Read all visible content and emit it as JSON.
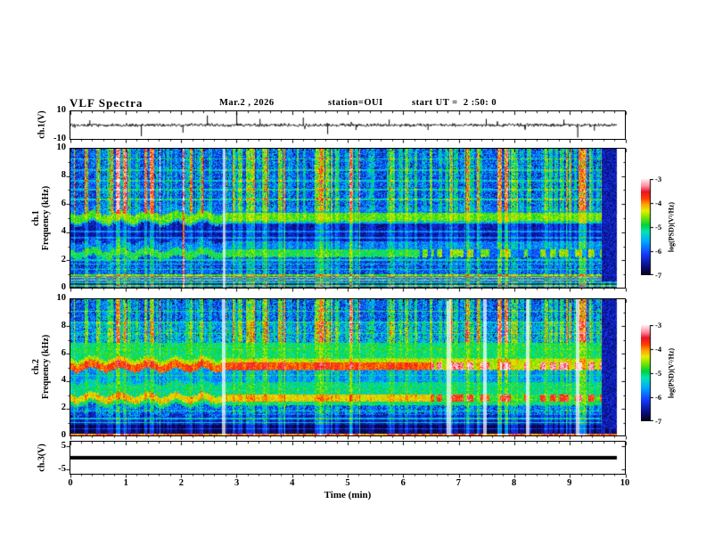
{
  "header": {
    "title": "VLF Spectra",
    "date": "Mar.2 , 2026",
    "station": "station=OUI",
    "start_ut": "start UT =  2 :50: 0"
  },
  "axes": {
    "time": {
      "label": "Time (min)",
      "ticks": [
        "0",
        "1",
        "2",
        "3",
        "4",
        "5",
        "6",
        "7",
        "8",
        "9",
        "10"
      ],
      "range_min": [
        0,
        10
      ],
      "minor_ticks_per_major": 5
    },
    "ch1_voltage": {
      "label": "ch.1(V)",
      "ticks": [
        "10",
        "-10"
      ],
      "range_V": [
        -10,
        10
      ]
    },
    "ch1_freq": {
      "line1": "ch.1",
      "line2": "Frequency (kHz)",
      "ticks": [
        "10",
        "8",
        "6",
        "4",
        "2",
        "0"
      ],
      "range_kHz": [
        0,
        10
      ]
    },
    "ch2_freq": {
      "line1": "ch.2",
      "line2": "Frequency (kHz)",
      "ticks": [
        "10",
        "8",
        "6",
        "4",
        "2",
        "0"
      ],
      "range_kHz": [
        0,
        10
      ]
    },
    "ch3_voltage": {
      "label": "ch.3(V)",
      "ticks": [
        "5",
        "-5"
      ],
      "tick_values_V": [
        5,
        -5
      ]
    }
  },
  "colorbar": {
    "label": "log(PSD)(V²/Hz)",
    "ticks": [
      "-3",
      "-4",
      "-5",
      "-6",
      "-7"
    ],
    "range": [
      -7,
      -3
    ]
  },
  "colormap": {
    "stops": [
      [
        0,
        "#050519"
      ],
      [
        0.08,
        "#0a0a78"
      ],
      [
        0.22,
        "#143cff"
      ],
      [
        0.35,
        "#00aaff"
      ],
      [
        0.45,
        "#00e6b4"
      ],
      [
        0.52,
        "#00d23c"
      ],
      [
        0.6,
        "#78e600"
      ],
      [
        0.67,
        "#e6f000"
      ],
      [
        0.74,
        "#ffa000"
      ],
      [
        0.8,
        "#ff3c00"
      ],
      [
        0.87,
        "#eb1428"
      ],
      [
        0.93,
        "#ff8ca0"
      ],
      [
        1,
        "#ffebf0"
      ]
    ]
  },
  "chart_data": [
    {
      "panel": "ch1_waveform",
      "type": "line",
      "units": "V",
      "ylim": [
        -10,
        10
      ],
      "x_range_min": [
        0,
        10
      ],
      "data_end_min": 9.85,
      "baseline_V": 0,
      "noise_V": 0.9,
      "spikes_t_min_V": [
        [
          0.35,
          3.5
        ],
        [
          1.28,
          -8
        ],
        [
          2.03,
          -5.5
        ],
        [
          2.47,
          7
        ],
        [
          3.0,
          9.5
        ],
        [
          3.42,
          4.5
        ],
        [
          4.2,
          5.5
        ],
        [
          4.64,
          -6.5
        ],
        [
          5.15,
          -3.5
        ],
        [
          5.75,
          4
        ],
        [
          6.45,
          -3.5
        ],
        [
          7.5,
          4.5
        ],
        [
          8.2,
          -3.5
        ],
        [
          8.9,
          4
        ],
        [
          9.15,
          -9
        ],
        [
          9.45,
          -4
        ]
      ]
    },
    {
      "panel": "ch1_spectrogram",
      "type": "heatmap",
      "x_range_min": [
        0,
        10
      ],
      "y_range_kHz": [
        0,
        10
      ],
      "z_range_logPSD": [
        -7,
        -3
      ],
      "data_end_min": 9.85,
      "bands": [
        {
          "f": [
            0,
            0.3
          ],
          "level": -6.5,
          "noise": 0.3
        },
        {
          "f": [
            0.3,
            0.95
          ],
          "level": -5.9,
          "noise": 0.45
        },
        {
          "f": [
            0.95,
            2.2
          ],
          "level": -6.1,
          "noise": 0.5
        },
        {
          "f": [
            2.2,
            2.75
          ],
          "level": -5.0,
          "noise": 0.35
        },
        {
          "f": [
            2.75,
            3.35
          ],
          "level": -5.9,
          "noise": 0.45
        },
        {
          "f": [
            3.35,
            4.6
          ],
          "level": -6.55,
          "noise": 0.35
        },
        {
          "f": [
            4.6,
            4.78
          ],
          "level": -5.6,
          "noise": 0.4
        },
        {
          "f": [
            4.78,
            5.4
          ],
          "level": -4.75,
          "noise": 0.3
        },
        {
          "f": [
            5.4,
            5.8
          ],
          "level": -5.9,
          "noise": 0.45
        },
        {
          "f": [
            5.8,
            10.01
          ],
          "level": -6.05,
          "noise": 0.55
        }
      ],
      "lines_kHz_level": [
        [
          0.12,
          -4.9
        ],
        [
          0.35,
          -5.2
        ],
        [
          0.55,
          -4.35
        ],
        [
          0.75,
          -4.3
        ],
        [
          0.9,
          -4.8
        ],
        [
          1.3,
          -5.5
        ],
        [
          1.7,
          -5.6
        ],
        [
          2.0,
          -5.5
        ],
        [
          3.6,
          -5.9
        ],
        [
          4.05,
          -5.9
        ],
        [
          5.1,
          -5.9
        ],
        [
          6.35,
          -5.4
        ],
        [
          7.05,
          -5.5
        ],
        [
          7.7,
          -5.6
        ],
        [
          8.45,
          -5.6
        ],
        [
          9.25,
          -5.5
        ]
      ],
      "special_columns": [
        {
          "t_min": 2.03,
          "boost": 2.4
        }
      ],
      "pale_columns": [
        {
          "t_min": 2.76,
          "w_min": 0.05
        }
      ],
      "dark_block": {
        "t0_min": 9.57,
        "t1_min": 9.86,
        "level": -6.45
      },
      "wobble_until_min": 2.74,
      "hot_streaks_until_min": 2.7,
      "intensify_after_min": 6.3,
      "intensify_bands_kHz": [
        [
          2.2,
          2.75
        ]
      ],
      "intensify_hi": 0.3,
      "intensify_lo": -1.0
    },
    {
      "panel": "ch2_spectrogram",
      "type": "heatmap",
      "x_range_min": [
        0,
        10
      ],
      "y_range_kHz": [
        0,
        10
      ],
      "z_range_logPSD": [
        -7,
        -3
      ],
      "data_end_min": 9.85,
      "bands": [
        {
          "f": [
            0,
            0.15
          ],
          "level": -5.8,
          "noise": 0.7
        },
        {
          "f": [
            0.15,
            0.8
          ],
          "level": -6.85,
          "noise": 0.15
        },
        {
          "f": [
            0.8,
            1.5
          ],
          "level": -6.5,
          "noise": 0.35
        },
        {
          "f": [
            1.5,
            2.2
          ],
          "level": -6.0,
          "noise": 0.5
        },
        {
          "f": [
            2.2,
            2.5
          ],
          "level": -5.1,
          "noise": 0.35
        },
        {
          "f": [
            2.5,
            3.0
          ],
          "level": -4.3,
          "noise": 0.3
        },
        {
          "f": [
            3.0,
            3.9
          ],
          "level": -5.15,
          "noise": 0.4
        },
        {
          "f": [
            3.9,
            4.8
          ],
          "level": -5.75,
          "noise": 0.45
        },
        {
          "f": [
            4.8,
            5.35
          ],
          "level": -3.9,
          "noise": 0.25
        },
        {
          "f": [
            5.35,
            5.65
          ],
          "level": -4.5,
          "noise": 0.3
        },
        {
          "f": [
            5.65,
            6.8
          ],
          "level": -5.05,
          "noise": 0.35
        },
        {
          "f": [
            6.8,
            8.3
          ],
          "level": -5.7,
          "noise": 0.55
        },
        {
          "f": [
            8.3,
            10.01
          ],
          "level": -6.05,
          "noise": 0.55
        }
      ],
      "lines_kHz_level": [
        [
          0.06,
          -4.1
        ],
        [
          0.5,
          -6.3
        ],
        [
          0.95,
          -5.5
        ],
        [
          1.25,
          -5.6
        ],
        [
          1.8,
          -5.5
        ],
        [
          3.35,
          -5.2
        ],
        [
          4.4,
          -5.3
        ],
        [
          4.65,
          -6.2
        ],
        [
          6.3,
          -4.9
        ],
        [
          7.5,
          -5.3
        ],
        [
          8.3,
          -5.5
        ],
        [
          9.1,
          -5.4
        ]
      ],
      "special_columns": [],
      "pale_columns": [
        {
          "t_min": 2.76,
          "w_min": 0.07
        },
        {
          "t_min": 6.82,
          "w_min": 0.08
        },
        {
          "t_min": 7.47,
          "w_min": 0.06
        },
        {
          "t_min": 8.24,
          "w_min": 0.06
        },
        {
          "t_min": 9.14,
          "w_min": 0.05
        }
      ],
      "dark_block": {
        "t0_min": 9.57,
        "t1_min": 9.86,
        "level": -6.45
      },
      "wobble_until_min": 2.74,
      "hot_streaks_until_min": 0,
      "intensify_after_min": 6.5,
      "intensify_bands_kHz": [
        [
          4.8,
          5.35
        ],
        [
          2.5,
          3.0
        ]
      ],
      "intensify_hi": 0.5,
      "intensify_lo": -0.6
    },
    {
      "panel": "ch3_waveform",
      "type": "line",
      "units": "V",
      "x_range_min": [
        0,
        10
      ],
      "data_end_min": 9.85,
      "value_V": 0,
      "line_thickness_px": 4
    }
  ]
}
